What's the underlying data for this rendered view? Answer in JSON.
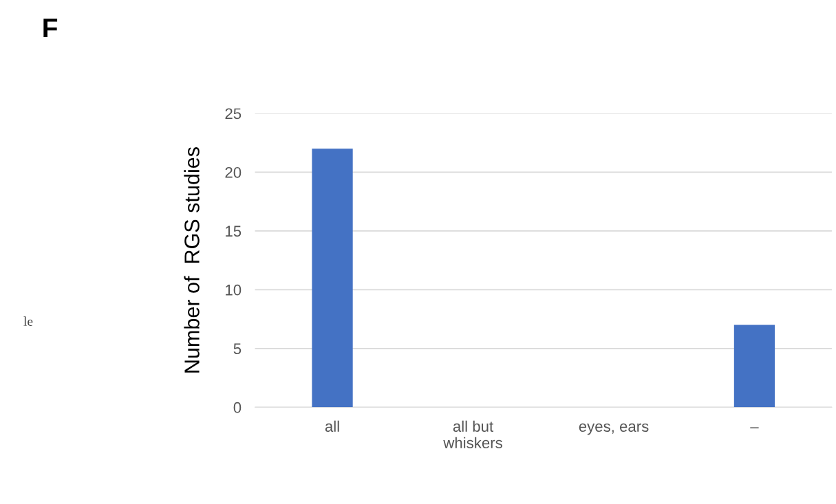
{
  "chart_data": {
    "type": "bar",
    "title": "F",
    "ylabel": "Number of  RGS studies",
    "categories": [
      "all",
      "all but\nwhiskers",
      "eyes, ears",
      "–"
    ],
    "values": [
      22,
      0,
      0,
      7
    ],
    "color": "#4472c4",
    "ylim": [
      0,
      25
    ],
    "yticks": [
      0,
      5,
      10,
      15,
      20,
      25
    ],
    "grid": "y",
    "annotations": [
      "le"
    ]
  }
}
